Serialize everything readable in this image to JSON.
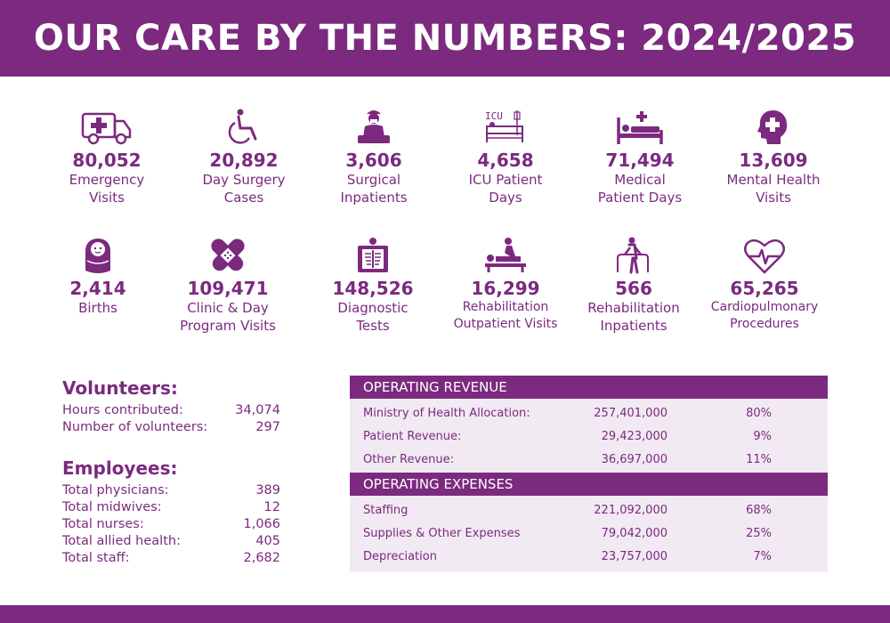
{
  "title": "OUR CARE BY THE NUMBERS: 2024/2025",
  "colors": {
    "brand": "#7b2a7f",
    "panel": "#f1eaf2"
  },
  "stats_row1": [
    {
      "value": "80,052",
      "label": "Emergency\nVisits",
      "icon": "ambulance-icon"
    },
    {
      "value": "20,892",
      "label": "Day Surgery\nCases",
      "icon": "wheelchair-icon"
    },
    {
      "value": "3,606",
      "label": "Surgical\nInpatients",
      "icon": "surgeon-icon"
    },
    {
      "value": "4,658",
      "label": "ICU Patient\nDays",
      "icon": "icu-bed-icon"
    },
    {
      "value": "71,494",
      "label": "Medical\nPatient Days",
      "icon": "hospital-bed-icon"
    },
    {
      "value": "13,609",
      "label": "Mental Health\nVisits",
      "icon": "mental-health-head-icon"
    }
  ],
  "stats_row2": [
    {
      "value": "2,414",
      "label": "Births",
      "icon": "baby-icon"
    },
    {
      "value": "109,471",
      "label": "Clinic & Day\nProgram Visits",
      "icon": "bandage-icon"
    },
    {
      "value": "148,526",
      "label": "Diagnostic\nTests",
      "icon": "xray-icon"
    },
    {
      "value": "16,299",
      "label": "Rehabilitation\nOutpatient Visits",
      "icon": "massage-therapy-icon"
    },
    {
      "value": "566",
      "label": "Rehabilitation\nInpatients",
      "icon": "walker-icon"
    },
    {
      "value": "65,265",
      "label": "Cardiopulmonary\nProcedures",
      "icon": "heartbeat-icon"
    }
  ],
  "volunteers": {
    "heading": "Volunteers:",
    "rows": [
      {
        "label": "Hours contributed:",
        "value": "34,074"
      },
      {
        "label": "Number of volunteers:",
        "value": "297"
      }
    ]
  },
  "employees": {
    "heading": "Employees:",
    "rows": [
      {
        "label": "Total physicians:",
        "value": "389"
      },
      {
        "label": "Total midwives:",
        "value": "12"
      },
      {
        "label": "Total nurses:",
        "value": "1,066"
      },
      {
        "label": "Total allied health:",
        "value": "405"
      },
      {
        "label": "Total staff:",
        "value": "2,682"
      }
    ]
  },
  "revenue": {
    "heading": "OPERATING REVENUE",
    "rows": [
      {
        "name": "Ministry of Health Allocation:",
        "amount": "257,401,000",
        "pct": "80%"
      },
      {
        "name": "Patient Revenue:",
        "amount": "29,423,000",
        "pct": "9%"
      },
      {
        "name": "Other Revenue:",
        "amount": "36,697,000",
        "pct": "11%"
      }
    ]
  },
  "expenses": {
    "heading": "OPERATING EXPENSES",
    "rows": [
      {
        "name": "Staffing",
        "amount": "221,092,000",
        "pct": "68%"
      },
      {
        "name": "Supplies & Other Expenses",
        "amount": "79,042,000",
        "pct": "25%"
      },
      {
        "name": "Depreciation",
        "amount": "23,757,000",
        "pct": "7%"
      }
    ]
  }
}
